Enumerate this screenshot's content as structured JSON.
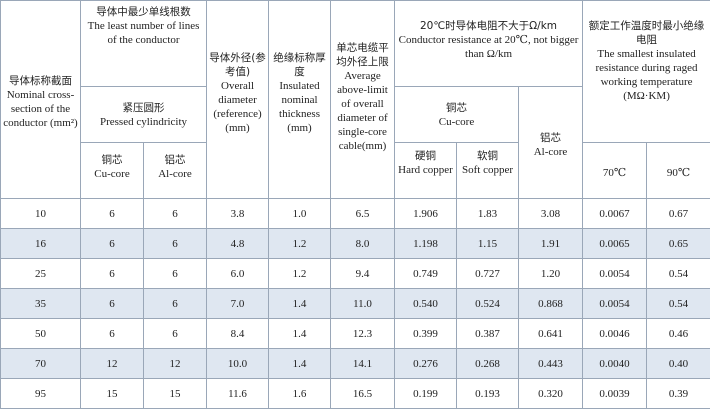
{
  "table": {
    "header": {
      "section": {
        "zh": "导体标称截面",
        "en": "Nominal cross-section of the conductor (mm²)"
      },
      "wires": {
        "zh": "导体中最少单线根数",
        "en": "The least number of lines of the conductor"
      },
      "pressed": {
        "zh": "紧压圆形",
        "en": "Pressed cylindricity"
      },
      "wire_cu": {
        "zh": "铜芯",
        "en": "Cu-core"
      },
      "wire_al": {
        "zh": "铝芯",
        "en": "Al-core"
      },
      "diameter": {
        "zh": "导体外径(参考值)",
        "en": "Overall diameter (reference) (mm)"
      },
      "insulation": {
        "zh": "绝缘标称厚度",
        "en": "Insulated nominal thickness (mm)"
      },
      "cable_diameter": {
        "zh": "单芯电缆平均外径上限",
        "en": "Average above-limit of overall diameter of single-core cable(mm)"
      },
      "resistance": {
        "zh": "20℃时导体电阻不大于Ω/km",
        "en": "Conductor resistance at 20℃, not bigger than Ω/km"
      },
      "res_cu": {
        "zh": "铜芯",
        "en": "Cu-core"
      },
      "hard": {
        "zh": "硬铜",
        "en": "Hard copper"
      },
      "soft": {
        "zh": "软铜",
        "en": "Soft copper"
      },
      "res_al": {
        "zh": "铝芯",
        "en": "Al-core"
      },
      "insulation_res": {
        "zh": "额定工作温度时最小绝缘电阻",
        "en": "The smallest insulated resistance during raged working temperature (MΩ·KM)"
      },
      "t70": "70℃",
      "t90": "90℃"
    },
    "rows": [
      [
        "10",
        "6",
        "6",
        "3.8",
        "1.0",
        "6.5",
        "1.906",
        "1.83",
        "3.08",
        "0.0067",
        "0.67"
      ],
      [
        "16",
        "6",
        "6",
        "4.8",
        "1.2",
        "8.0",
        "1.198",
        "1.15",
        "1.91",
        "0.0065",
        "0.65"
      ],
      [
        "25",
        "6",
        "6",
        "6.0",
        "1.2",
        "9.4",
        "0.749",
        "0.727",
        "1.20",
        "0.0054",
        "0.54"
      ],
      [
        "35",
        "6",
        "6",
        "7.0",
        "1.4",
        "11.0",
        "0.540",
        "0.524",
        "0.868",
        "0.0054",
        "0.54"
      ],
      [
        "50",
        "6",
        "6",
        "8.4",
        "1.4",
        "12.3",
        "0.399",
        "0.387",
        "0.641",
        "0.0046",
        "0.46"
      ],
      [
        "70",
        "12",
        "12",
        "10.0",
        "1.4",
        "14.1",
        "0.276",
        "0.268",
        "0.443",
        "0.0040",
        "0.40"
      ],
      [
        "95",
        "15",
        "15",
        "11.6",
        "1.6",
        "16.5",
        "0.199",
        "0.193",
        "0.320",
        "0.0039",
        "0.39"
      ]
    ]
  }
}
